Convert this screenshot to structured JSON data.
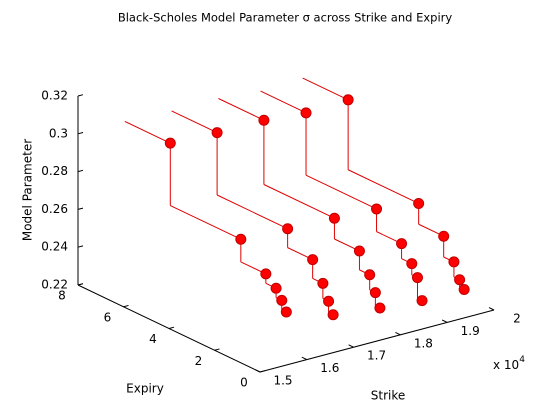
{
  "chart_data": {
    "type": "stairs3d",
    "title": "Black-Scholes Model Parameter σ across Strike and Expiry",
    "xlabel": "Strike",
    "ylabel": "Expiry",
    "zlabel": "Model Parameter",
    "x_scale_label": "x 10",
    "x_scale_exponent": "4",
    "xlim": [
      1.5,
      2
    ],
    "xticks": [
      1.5,
      1.6,
      1.7,
      1.8,
      1.9,
      2
    ],
    "ylim": [
      0,
      8
    ],
    "yticks": [
      0,
      2,
      4,
      6,
      8
    ],
    "zlim": [
      0.22,
      0.32
    ],
    "zticks": [
      0.22,
      0.24,
      0.26,
      0.28,
      0.3,
      0.32
    ],
    "expiry": [
      6,
      2.9,
      1.8,
      1.35,
      1.1,
      0.9
    ],
    "series": [
      {
        "strike": 1.6,
        "color": "#ff0000",
        "values": [
          0.3,
          0.267,
          0.255,
          0.25,
          0.245,
          0.24
        ]
      },
      {
        "strike": 1.7,
        "color": "#ff0000",
        "values": [
          0.299,
          0.266,
          0.256,
          0.246,
          0.238,
          0.232
        ]
      },
      {
        "strike": 1.8,
        "color": "#ff0000",
        "values": [
          0.299,
          0.265,
          0.254,
          0.244,
          0.236,
          0.229
        ]
      },
      {
        "strike": 1.89,
        "color": "#ff0000",
        "values": [
          0.297,
          0.264,
          0.252,
          0.244,
          0.238,
          0.227
        ]
      },
      {
        "strike": 1.98,
        "color": "#ff0000",
        "values": [
          0.298,
          0.261,
          0.25,
          0.239,
          0.231,
          0.227
        ]
      }
    ]
  }
}
